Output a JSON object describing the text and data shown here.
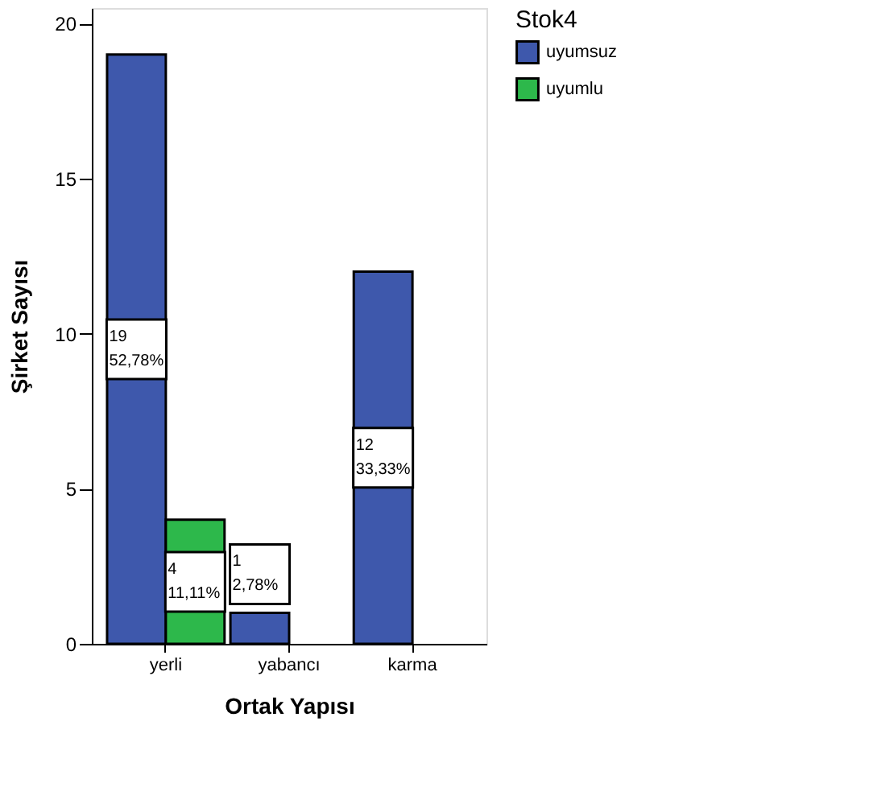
{
  "chart_data": {
    "type": "bar",
    "xlabel": "Ortak Yapısı",
    "ylabel": "Şirket Sayısı",
    "legend_title": "Stok4",
    "legend": "top right",
    "categories": [
      "yerli",
      "yabancı",
      "karma"
    ],
    "series": [
      {
        "name": "uyumsuz",
        "color": "#3e58ac",
        "values": [
          19,
          1,
          12
        ],
        "value_labels": [
          "19\n52,78%",
          "1\n2,78%",
          "12\n33,33%"
        ]
      },
      {
        "name": "uyumlu",
        "color": "#2db84b",
        "values": [
          4,
          null,
          null
        ],
        "value_labels": [
          "4\n11,11%",
          null,
          null
        ]
      }
    ],
    "ylim": [
      0,
      20.5
    ],
    "yticks": [
      0,
      5,
      10,
      15,
      20
    ],
    "grid": false
  }
}
